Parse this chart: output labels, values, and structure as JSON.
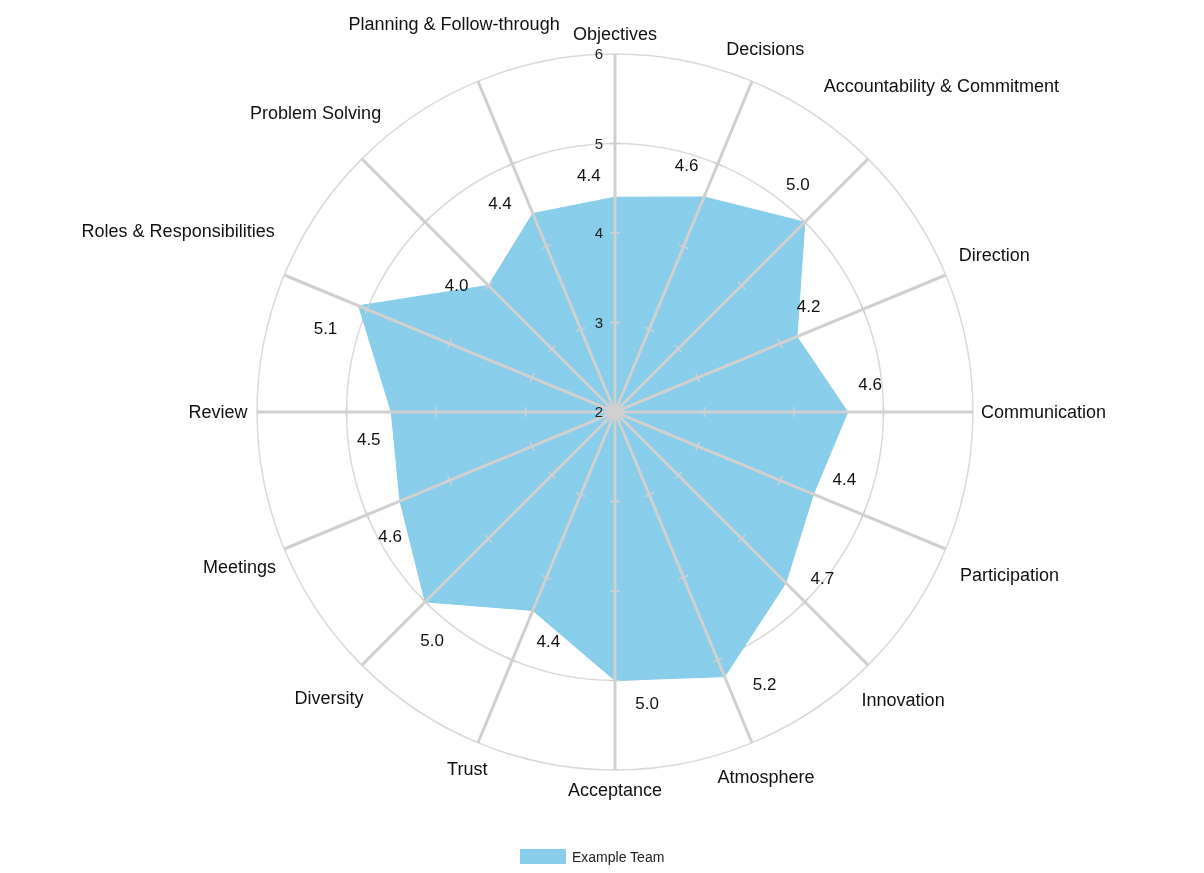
{
  "chart_data": {
    "type": "radar",
    "categories": [
      "Objectives",
      "Decisions",
      "Accountability & Commitment",
      "Direction",
      "Communication",
      "Participation",
      "Innovation",
      "Atmosphere",
      "Acceptance",
      "Trust",
      "Diversity",
      "Meetings",
      "Review",
      "Roles & Responsibilities",
      "Problem Solving",
      "Planning & Follow-through"
    ],
    "series": [
      {
        "name": "Example Team",
        "color": "#88cde9",
        "values": [
          4.4,
          4.6,
          5.0,
          4.2,
          4.6,
          4.4,
          4.7,
          5.2,
          5.0,
          4.4,
          5.0,
          4.6,
          4.5,
          5.1,
          4.0,
          4.4
        ],
        "value_labels": [
          "4.4",
          "4.6",
          "5.0",
          "4.2",
          "4.6",
          "4.4",
          "4.7",
          "5.2",
          "5.0",
          "4.4",
          "5.0",
          "4.6",
          "4.5",
          "5.1",
          "4.0",
          "4.4"
        ]
      }
    ],
    "ylim": [
      2,
      6
    ],
    "yticks": [
      2,
      3,
      4,
      5,
      6
    ],
    "grid": true,
    "legend": "bottom"
  }
}
